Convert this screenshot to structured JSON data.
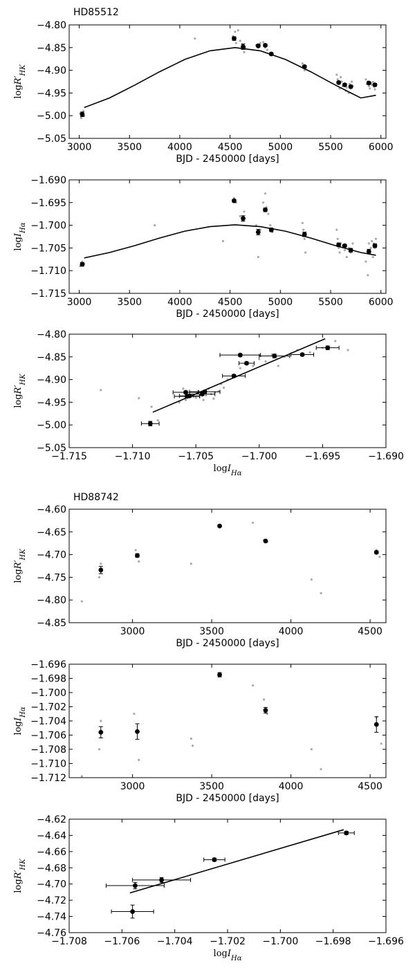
{
  "figure": {
    "star_labels": [
      "HD85512",
      "HD88742"
    ]
  },
  "chart_data": [
    {
      "type": "scatter",
      "title": "HD85512",
      "xlabel": "BJD - 2450000 [days]",
      "ylabel": "logR'HK",
      "xlim": [
        2900,
        6050
      ],
      "ylim": [
        -5.05,
        -4.8
      ],
      "xticks": [
        3000,
        3500,
        4000,
        4500,
        5000,
        5500,
        6000
      ],
      "yticks": [
        -5.05,
        -5.0,
        -4.95,
        -4.9,
        -4.85,
        -4.8
      ],
      "xtick_labels": [
        "3000",
        "3500",
        "4000",
        "4500",
        "5000",
        "5500",
        "6000"
      ],
      "ytick_labels": [
        "−5.05",
        "−5.00",
        "−4.95",
        "−4.90",
        "−4.85",
        "−4.80"
      ],
      "binned": {
        "x": [
          3030,
          4540,
          4630,
          4780,
          4850,
          4910,
          5240,
          5580,
          5640,
          5700,
          5880,
          5940
        ],
        "y": [
          -4.997,
          -4.83,
          -4.848,
          -4.846,
          -4.845,
          -4.864,
          -4.892,
          -4.927,
          -4.932,
          -4.936,
          -4.928,
          -4.932
        ],
        "yerr": [
          0.005,
          0.004,
          0.006,
          0.003,
          0.003,
          0.003,
          0.003,
          0.003,
          0.003,
          0.003,
          0.003,
          0.003
        ]
      },
      "raw": {
        "x": [
          3010,
          3020,
          3040,
          3050,
          4150,
          4530,
          4550,
          4560,
          4580,
          4600,
          4620,
          4640,
          4650,
          4760,
          4780,
          4800,
          4830,
          4850,
          4870,
          4900,
          4920,
          5220,
          5230,
          5240,
          5250,
          5560,
          5570,
          5580,
          5590,
          5600,
          5610,
          5620,
          5640,
          5650,
          5660,
          5680,
          5690,
          5700,
          5710,
          5720,
          5850,
          5860,
          5870,
          5880,
          5890,
          5900,
          5910,
          5920,
          5930,
          5940,
          5950
        ],
        "y": [
          -4.995,
          -5.005,
          -4.99,
          -5.0,
          -4.83,
          -4.825,
          -4.815,
          -4.84,
          -4.812,
          -4.835,
          -4.845,
          -4.86,
          -4.85,
          -4.845,
          -4.85,
          -4.84,
          -4.838,
          -4.85,
          -4.855,
          -4.862,
          -4.865,
          -4.885,
          -4.895,
          -4.9,
          -4.89,
          -4.91,
          -4.92,
          -4.93,
          -4.94,
          -4.915,
          -4.925,
          -4.935,
          -4.93,
          -4.945,
          -4.938,
          -4.95,
          -4.93,
          -4.94,
          -4.925,
          -4.935,
          -4.92,
          -4.93,
          -4.925,
          -4.935,
          -4.94,
          -4.928,
          -4.932,
          -4.926,
          -4.936,
          -4.942,
          -4.93
        ]
      },
      "fit": {
        "x": [
          3050,
          3300,
          3550,
          3800,
          4050,
          4300,
          4550,
          4800,
          5050,
          5300,
          5550,
          5800,
          5950
        ],
        "y": [
          -4.982,
          -4.961,
          -4.933,
          -4.903,
          -4.876,
          -4.857,
          -4.85,
          -4.857,
          -4.876,
          -4.903,
          -4.933,
          -4.961,
          -4.955
        ]
      }
    },
    {
      "type": "scatter",
      "xlabel": "BJD - 2450000 [days]",
      "ylabel": "logI_Hα",
      "xlim": [
        2900,
        6050
      ],
      "ylim": [
        -1.715,
        -1.69
      ],
      "xticks": [
        3000,
        3500,
        4000,
        4500,
        5000,
        5500,
        6000
      ],
      "yticks": [
        -1.715,
        -1.71,
        -1.705,
        -1.7,
        -1.695,
        -1.69
      ],
      "xtick_labels": [
        "3000",
        "3500",
        "4000",
        "4500",
        "5000",
        "5500",
        "6000"
      ],
      "ytick_labels": [
        "−1.715",
        "−1.710",
        "−1.705",
        "−1.700",
        "−1.695",
        "−1.690"
      ],
      "binned": {
        "x": [
          3030,
          4540,
          4630,
          4780,
          4850,
          4910,
          5240,
          5580,
          5640,
          5700,
          5880,
          5940
        ],
        "y": [
          -1.7086,
          -1.6946,
          -1.6985,
          -1.7015,
          -1.6966,
          -1.701,
          -1.702,
          -1.7043,
          -1.7045,
          -1.7055,
          -1.7058,
          -1.7045
        ],
        "yerr": [
          0.0004,
          0.0003,
          0.0006,
          0.0006,
          0.0004,
          0.0004,
          0.0005,
          0.0004,
          0.0003,
          0.0004,
          0.0005,
          0.0004
        ]
      },
      "raw": {
        "x": [
          3010,
          3030,
          3050,
          3750,
          4430,
          4540,
          4560,
          4600,
          4620,
          4640,
          4760,
          4780,
          4800,
          4830,
          4850,
          4860,
          4880,
          4900,
          4920,
          5220,
          5230,
          5240,
          5250,
          5560,
          5570,
          5580,
          5590,
          5600,
          5620,
          5640,
          5660,
          5680,
          5700,
          5720,
          5850,
          5870,
          5880,
          5890,
          5900,
          5910,
          5920,
          5930,
          5940,
          5950
        ],
        "y": [
          -1.709,
          -1.708,
          -1.7085,
          -1.7,
          -1.7035,
          -1.694,
          -1.695,
          -1.698,
          -1.699,
          -1.697,
          -1.7,
          -1.707,
          -1.701,
          -1.695,
          -1.693,
          -1.696,
          -1.6975,
          -1.7,
          -1.7015,
          -1.6995,
          -1.701,
          -1.703,
          -1.706,
          -1.701,
          -1.703,
          -1.705,
          -1.706,
          -1.704,
          -1.7045,
          -1.7055,
          -1.707,
          -1.705,
          -1.706,
          -1.704,
          -1.708,
          -1.711,
          -1.704,
          -1.706,
          -1.705,
          -1.7035,
          -1.707,
          -1.704,
          -1.705,
          -1.703
        ]
      },
      "fit": {
        "x": [
          3050,
          3300,
          3550,
          3800,
          4050,
          4300,
          4550,
          4800,
          5050,
          5300,
          5550,
          5800,
          5950
        ],
        "y": [
          -1.7072,
          -1.706,
          -1.7045,
          -1.7028,
          -1.7013,
          -1.7003,
          -1.6999,
          -1.7003,
          -1.7013,
          -1.7028,
          -1.7045,
          -1.706,
          -1.7066
        ]
      }
    },
    {
      "type": "scatter",
      "xlabel": "logI_Hα",
      "ylabel": "logR'HK",
      "xlim": [
        -1.715,
        -1.69
      ],
      "ylim": [
        -5.05,
        -4.8
      ],
      "xticks": [
        -1.715,
        -1.71,
        -1.705,
        -1.7,
        -1.695,
        -1.69
      ],
      "yticks": [
        -5.05,
        -5.0,
        -4.95,
        -4.9,
        -4.85,
        -4.8
      ],
      "xtick_labels": [
        "−1.715",
        "−1.710",
        "−1.705",
        "−1.700",
        "−1.695",
        "−1.690"
      ],
      "ytick_labels": [
        "−5.05",
        "−5.00",
        "−4.95",
        "−4.90",
        "−4.85",
        "−4.80"
      ],
      "binned": {
        "x": [
          -1.7086,
          -1.6946,
          -1.7015,
          -1.6966,
          -1.701,
          -1.702,
          -1.7043,
          -1.7045,
          -1.7055,
          -1.7058,
          -1.6988,
          -1.7057
        ],
        "y": [
          -4.997,
          -4.83,
          -4.846,
          -4.845,
          -4.864,
          -4.892,
          -4.927,
          -4.932,
          -4.936,
          -4.928,
          -4.848,
          -4.937
        ],
        "xerr": [
          0.0007,
          0.0009,
          0.0016,
          0.0009,
          0.0006,
          0.0009,
          0.0012,
          0.001,
          0.0008,
          0.001,
          0.0012,
          0.001
        ],
        "yerr": [
          0.005,
          0.004,
          0.003,
          0.003,
          0.003,
          0.003,
          0.003,
          0.003,
          0.003,
          0.003,
          0.004,
          0.003
        ]
      },
      "raw": {
        "x": [
          -1.7125,
          -1.7095,
          -1.7085,
          -1.708,
          -1.706,
          -1.7055,
          -1.705,
          -1.7048,
          -1.7046,
          -1.7044,
          -1.7042,
          -1.704,
          -1.7038,
          -1.7035,
          -1.703,
          -1.7025,
          -1.702,
          -1.7015,
          -1.701,
          -1.7005,
          -1.7,
          -1.6995,
          -1.699,
          -1.6985,
          -1.698,
          -1.697,
          -1.696,
          -1.695,
          -1.694,
          -1.693,
          -1.7063,
          -1.7058,
          -1.7052,
          -1.7036,
          -1.7032,
          -1.7028
        ],
        "y": [
          -4.923,
          -4.941,
          -4.96,
          -4.99,
          -4.92,
          -4.935,
          -4.94,
          -4.925,
          -4.93,
          -4.945,
          -4.935,
          -4.92,
          -4.932,
          -4.928,
          -4.91,
          -4.9,
          -4.89,
          -4.875,
          -4.865,
          -4.87,
          -4.855,
          -4.86,
          -4.845,
          -4.87,
          -4.85,
          -4.835,
          -4.84,
          -4.83,
          -4.815,
          -4.835,
          -4.95,
          -4.945,
          -4.938,
          -4.942,
          -4.926,
          -4.918
        ]
      },
      "fit": {
        "x": [
          -1.7084,
          -1.6948
        ],
        "y": [
          -4.972,
          -4.81
        ]
      }
    },
    {
      "type": "scatter",
      "title": "HD88742",
      "xlabel": "BJD - 2450000 [days]",
      "ylabel": "logR'HK",
      "xlim": [
        2600,
        4600
      ],
      "ylim": [
        -4.85,
        -4.6
      ],
      "xticks": [
        3000,
        3500,
        4000,
        4500
      ],
      "yticks": [
        -4.85,
        -4.8,
        -4.75,
        -4.7,
        -4.65,
        -4.6
      ],
      "xtick_labels": [
        "3000",
        "3500",
        "4000",
        "4500"
      ],
      "ytick_labels": [
        "−4.85",
        "−4.80",
        "−4.75",
        "−4.70",
        "−4.65",
        "−4.60"
      ],
      "binned": {
        "x": [
          2800,
          3030,
          3550,
          3840,
          4540
        ],
        "y": [
          -4.734,
          -4.702,
          -4.637,
          -4.67,
          -4.695
        ],
        "yerr": [
          0.008,
          0.004,
          0.002,
          0.002,
          0.003
        ]
      },
      "raw": {
        "x": [
          2680,
          2790,
          2800,
          3020,
          3040,
          3370,
          3550,
          3760,
          3830,
          3850,
          4130,
          4190,
          4540,
          4560
        ],
        "y": [
          -4.803,
          -4.75,
          -4.72,
          -4.69,
          -4.715,
          -4.72,
          -4.635,
          -4.63,
          -4.668,
          -4.672,
          -4.755,
          -4.785,
          -4.69,
          -4.705
        ]
      }
    },
    {
      "type": "scatter",
      "xlabel": "BJD - 2450000 [days]",
      "ylabel": "logI_Hα",
      "xlim": [
        2600,
        4600
      ],
      "ylim": [
        -1.712,
        -1.696
      ],
      "xticks": [
        3000,
        3500,
        4000,
        4500
      ],
      "yticks": [
        -1.712,
        -1.71,
        -1.708,
        -1.706,
        -1.704,
        -1.702,
        -1.7,
        -1.698,
        -1.696
      ],
      "xtick_labels": [
        "3000",
        "3500",
        "4000",
        "4500"
      ],
      "ytick_labels": [
        "−1.712",
        "−1.710",
        "−1.708",
        "−1.706",
        "−1.704",
        "−1.702",
        "−1.700",
        "−1.698",
        "−1.696"
      ],
      "binned": {
        "x": [
          2800,
          3030,
          3550,
          3840,
          4540
        ],
        "y": [
          -1.7056,
          -1.7055,
          -1.6975,
          -1.7025,
          -1.7045
        ],
        "yerr": [
          0.0008,
          0.0011,
          0.0003,
          0.0004,
          0.0011
        ]
      },
      "raw": {
        "x": [
          2680,
          2790,
          2800,
          3010,
          3040,
          3370,
          3380,
          3550,
          3760,
          3830,
          3850,
          4130,
          4190,
          4540,
          4570
        ],
        "y": [
          -1.7118,
          -1.708,
          -1.704,
          -1.703,
          -1.7095,
          -1.7065,
          -1.7075,
          -1.6972,
          -1.699,
          -1.701,
          -1.703,
          -1.708,
          -1.7108,
          -1.7035,
          -1.7072
        ]
      }
    },
    {
      "type": "scatter",
      "xlabel": "logI_Hα",
      "ylabel": "logR'HK",
      "xlim": [
        -1.708,
        -1.696
      ],
      "ylim": [
        -4.76,
        -4.62
      ],
      "xticks": [
        -1.708,
        -1.706,
        -1.704,
        -1.702,
        -1.7,
        -1.698,
        -1.696
      ],
      "yticks": [
        -4.76,
        -4.74,
        -4.72,
        -4.7,
        -4.68,
        -4.66,
        -4.64,
        -4.62
      ],
      "xtick_labels": [
        "−1.708",
        "−1.706",
        "−1.704",
        "−1.702",
        "−1.700",
        "−1.698",
        "−1.696"
      ],
      "ytick_labels": [
        "−4.76",
        "−4.74",
        "−4.72",
        "−4.70",
        "−4.68",
        "−4.66",
        "−4.64",
        "−4.62"
      ],
      "binned": {
        "x": [
          -1.7056,
          -1.7055,
          -1.6975,
          -1.7025,
          -1.7045
        ],
        "y": [
          -4.734,
          -4.702,
          -4.637,
          -4.67,
          -4.695
        ],
        "xerr": [
          0.0008,
          0.0011,
          0.0003,
          0.0004,
          0.0011
        ],
        "yerr": [
          0.008,
          0.004,
          0.002,
          0.002,
          0.003
        ]
      },
      "fit": {
        "x": [
          -1.7057,
          -1.6976
        ],
        "y": [
          -4.711,
          -4.633
        ]
      }
    }
  ]
}
